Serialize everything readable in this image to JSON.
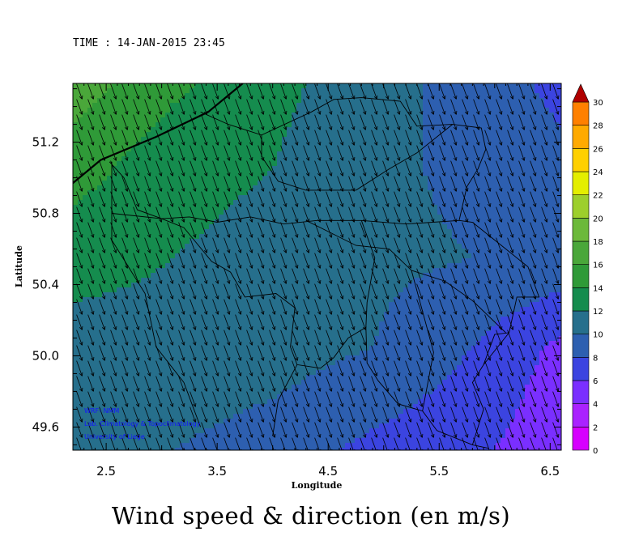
{
  "header": {
    "time_label": "TIME : 14-JAN-2015 23:45"
  },
  "caption": "Wind speed & direction (en m/s)",
  "credits": [
    "WRF- NMM",
    "Lab. Climatology & Topoclimatology",
    "University of Liege"
  ],
  "chart_data": {
    "type": "heatmap",
    "title": "",
    "xlabel": "Longitude",
    "ylabel": "Latitude",
    "xlim": [
      2.2,
      6.6
    ],
    "ylim": [
      49.47,
      51.53
    ],
    "x_ticks": [
      2.5,
      3.5,
      4.5,
      5.5,
      6.5
    ],
    "x_tick_labels": [
      "2.5",
      "3.5",
      "4.5",
      "5.5",
      "6.5"
    ],
    "y_ticks": [
      49.6,
      50.0,
      50.4,
      50.8,
      51.2
    ],
    "y_tick_labels": [
      "49.6",
      "50.0",
      "50.4",
      "50.8",
      "51.2"
    ],
    "grid": false,
    "colorbar": {
      "placement": "right",
      "min": 0,
      "max": 30,
      "step": 2,
      "labels": [
        "0",
        "2",
        "4",
        "6",
        "8",
        "10",
        "12",
        "14",
        "16",
        "18",
        "20",
        "22",
        "24",
        "26",
        "28",
        "30"
      ],
      "colors": [
        "#d600ff",
        "#aa22ff",
        "#7a2fff",
        "#3b44e0",
        "#2d5fb0",
        "#266f8c",
        "#158c4e",
        "#2f9a38",
        "#4aa73a",
        "#6cb93a",
        "#9dcf2c",
        "#e4ee00",
        "#ffd000",
        "#ffaa00",
        "#ff8000",
        "#ff5500",
        "#ff2000",
        "#e00000",
        "#b00000"
      ]
    },
    "wind_direction_deg_from": 200,
    "speed_field": {
      "lon": [
        2.2,
        3.1,
        4.0,
        4.9,
        5.8,
        6.6
      ],
      "lat": [
        51.53,
        51.05,
        50.55,
        50.05,
        49.47
      ],
      "values": [
        [
          17.0,
          14.5,
          12.5,
          11.0,
          9.0,
          7.5
        ],
        [
          15.0,
          12.5,
          12.0,
          10.5,
          9.5,
          8.5
        ],
        [
          12.5,
          12.0,
          11.5,
          10.5,
          10.0,
          9.5
        ],
        [
          11.5,
          11.5,
          11.0,
          10.0,
          8.0,
          5.5
        ],
        [
          11.0,
          10.0,
          9.0,
          7.5,
          6.5,
          4.5
        ]
      ]
    }
  }
}
